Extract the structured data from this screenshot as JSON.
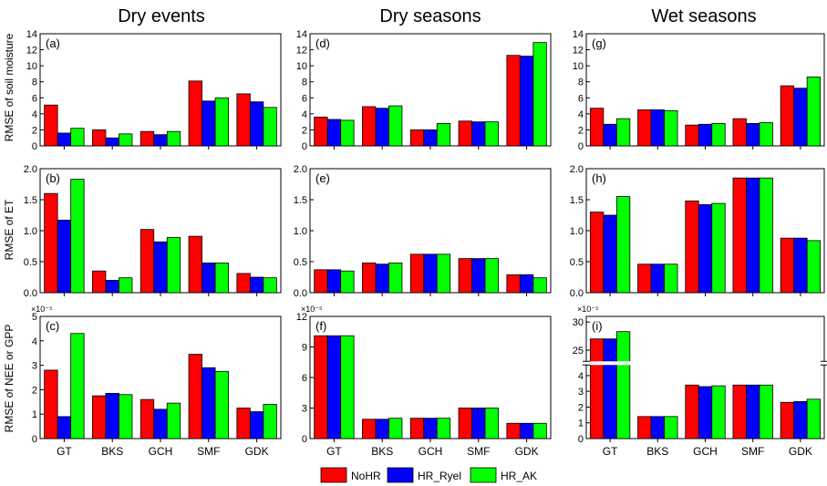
{
  "figure": {
    "column_titles": [
      "Dry events",
      "Dry seasons",
      "Wet seasons"
    ],
    "row_labels": [
      "RMSE of soil moisture",
      "RMSE of ET",
      "RMSE of NEE or GPP"
    ],
    "legend": [
      {
        "name": "NoHR",
        "color": "#ff0000"
      },
      {
        "name": "HR_Ryel",
        "color": "#0000ff"
      },
      {
        "name": "HR_AK",
        "color": "#00ff00"
      }
    ]
  },
  "chart_data": [
    {
      "type": "bar",
      "panel": "(a)",
      "categories": [
        "GT",
        "BKS",
        "GCH",
        "SMF",
        "GDK"
      ],
      "ylim": [
        0,
        14
      ],
      "yticks": [
        0,
        2,
        4,
        6,
        8,
        10,
        12,
        14
      ],
      "ytick_labels": [
        "0",
        "2",
        "4",
        "6",
        "8",
        "10",
        "12",
        "14"
      ],
      "series": [
        {
          "name": "NoHR",
          "values": [
            5.1,
            2.0,
            1.8,
            8.1,
            6.5
          ]
        },
        {
          "name": "HR_Ryel",
          "values": [
            1.6,
            1.0,
            1.4,
            5.6,
            5.5
          ]
        },
        {
          "name": "HR_AK",
          "values": [
            2.2,
            1.5,
            1.8,
            6.0,
            4.8
          ]
        }
      ]
    },
    {
      "type": "bar",
      "panel": "(d)",
      "categories": [
        "GT",
        "BKS",
        "GCH",
        "SMF",
        "GDK"
      ],
      "ylim": [
        0,
        14
      ],
      "yticks": [
        0,
        2,
        4,
        6,
        8,
        10,
        12,
        14
      ],
      "ytick_labels": [
        "0",
        "2",
        "4",
        "6",
        "8",
        "10",
        "12",
        "14"
      ],
      "series": [
        {
          "name": "NoHR",
          "values": [
            3.6,
            4.9,
            2.0,
            3.1,
            11.3
          ]
        },
        {
          "name": "HR_Ryel",
          "values": [
            3.3,
            4.7,
            2.0,
            3.0,
            11.2
          ]
        },
        {
          "name": "HR_AK",
          "values": [
            3.2,
            5.0,
            2.8,
            3.0,
            12.9
          ]
        }
      ]
    },
    {
      "type": "bar",
      "panel": "(g)",
      "categories": [
        "GT",
        "BKS",
        "GCH",
        "SMF",
        "GDK"
      ],
      "ylim": [
        0,
        14
      ],
      "yticks": [
        0,
        2,
        4,
        6,
        8,
        10,
        12,
        14
      ],
      "ytick_labels": [
        "0",
        "2",
        "4",
        "6",
        "8",
        "10",
        "12",
        "14"
      ],
      "series": [
        {
          "name": "NoHR",
          "values": [
            4.7,
            4.5,
            2.6,
            3.4,
            7.5
          ]
        },
        {
          "name": "HR_Ryel",
          "values": [
            2.7,
            4.5,
            2.7,
            2.8,
            7.2
          ]
        },
        {
          "name": "HR_AK",
          "values": [
            3.4,
            4.4,
            2.8,
            2.9,
            8.6
          ]
        }
      ]
    },
    {
      "type": "bar",
      "panel": "(b)",
      "categories": [
        "GT",
        "BKS",
        "GCH",
        "SMF",
        "GDK"
      ],
      "ylim": [
        0,
        2.0
      ],
      "yticks": [
        0,
        0.5,
        1.0,
        1.5,
        2.0
      ],
      "ytick_labels": [
        "0.0",
        "0.5",
        "1.0",
        "1.5",
        "2.0"
      ],
      "series": [
        {
          "name": "NoHR",
          "values": [
            1.6,
            0.35,
            1.02,
            0.91,
            0.31
          ]
        },
        {
          "name": "HR_Ryel",
          "values": [
            1.17,
            0.2,
            0.82,
            0.48,
            0.25
          ]
        },
        {
          "name": "HR_AK",
          "values": [
            1.83,
            0.24,
            0.89,
            0.48,
            0.24
          ]
        }
      ]
    },
    {
      "type": "bar",
      "panel": "(e)",
      "categories": [
        "GT",
        "BKS",
        "GCH",
        "SMF",
        "GDK"
      ],
      "ylim": [
        0,
        2.0
      ],
      "yticks": [
        0,
        0.5,
        1.0,
        1.5,
        2.0
      ],
      "ytick_labels": [
        "0.0",
        "0.5",
        "1.0",
        "1.5",
        "2.0"
      ],
      "series": [
        {
          "name": "NoHR",
          "values": [
            0.37,
            0.48,
            0.62,
            0.55,
            0.29
          ]
        },
        {
          "name": "HR_Ryel",
          "values": [
            0.37,
            0.46,
            0.62,
            0.55,
            0.29
          ]
        },
        {
          "name": "HR_AK",
          "values": [
            0.35,
            0.48,
            0.62,
            0.55,
            0.24
          ]
        }
      ]
    },
    {
      "type": "bar",
      "panel": "(h)",
      "categories": [
        "GT",
        "BKS",
        "GCH",
        "SMF",
        "GDK"
      ],
      "ylim": [
        0,
        2.0
      ],
      "yticks": [
        0,
        0.5,
        1.0,
        1.5,
        2.0
      ],
      "ytick_labels": [
        "0.0",
        "0.5",
        "1.0",
        "1.5",
        "2.0"
      ],
      "series": [
        {
          "name": "NoHR",
          "values": [
            1.3,
            0.46,
            1.48,
            1.85,
            0.88
          ]
        },
        {
          "name": "HR_Ryel",
          "values": [
            1.25,
            0.46,
            1.42,
            1.85,
            0.88
          ]
        },
        {
          "name": "HR_AK",
          "values": [
            1.55,
            0.46,
            1.44,
            1.85,
            0.84
          ]
        }
      ]
    },
    {
      "type": "bar",
      "panel": "(c)",
      "categories": [
        "GT",
        "BKS",
        "GCH",
        "SMF",
        "GDK"
      ],
      "ylim": [
        0,
        5
      ],
      "yticks": [
        0,
        1,
        2,
        3,
        4,
        5
      ],
      "ytick_labels": [
        "0",
        "1",
        "2",
        "3",
        "4",
        "5"
      ],
      "scale_label": "×10⁻⁵",
      "series": [
        {
          "name": "NoHR",
          "values": [
            2.8,
            1.75,
            1.6,
            3.45,
            1.25
          ]
        },
        {
          "name": "HR_Ryel",
          "values": [
            0.9,
            1.85,
            1.2,
            2.9,
            1.1
          ]
        },
        {
          "name": "HR_AK",
          "values": [
            4.3,
            1.8,
            1.45,
            2.75,
            1.4
          ]
        }
      ]
    },
    {
      "type": "bar",
      "panel": "(f)",
      "categories": [
        "GT",
        "BKS",
        "GCH",
        "SMF",
        "GDK"
      ],
      "ylim": [
        0,
        12
      ],
      "yticks": [
        0,
        3,
        6,
        9,
        12
      ],
      "ytick_labels": [
        "0",
        "3",
        "6",
        "9",
        "12"
      ],
      "scale_label": "×10⁻⁵",
      "series": [
        {
          "name": "NoHR",
          "values": [
            10.1,
            1.9,
            2.0,
            3.0,
            1.5
          ]
        },
        {
          "name": "HR_Ryel",
          "values": [
            10.1,
            1.9,
            2.0,
            3.0,
            1.5
          ]
        },
        {
          "name": "HR_AK",
          "values": [
            10.1,
            2.0,
            2.0,
            3.0,
            1.5
          ]
        }
      ]
    },
    {
      "type": "bar",
      "panel": "(i)",
      "categories": [
        "GT",
        "BKS",
        "GCH",
        "SMF",
        "GDK"
      ],
      "scale_label": "×10⁻⁵",
      "axis_break": [
        4.5,
        23.5
      ],
      "yticks": [
        0,
        1,
        2,
        3,
        4,
        25,
        30
      ],
      "ytick_labels": [
        "0",
        "1",
        "2",
        "3",
        "4",
        "25",
        "30"
      ],
      "series": [
        {
          "name": "NoHR",
          "values": [
            27.0,
            1.4,
            3.4,
            3.4,
            2.3
          ]
        },
        {
          "name": "HR_Ryel",
          "values": [
            27.0,
            1.4,
            3.3,
            3.4,
            2.35
          ]
        },
        {
          "name": "HR_AK",
          "values": [
            28.3,
            1.4,
            3.35,
            3.4,
            2.5
          ]
        }
      ]
    }
  ]
}
